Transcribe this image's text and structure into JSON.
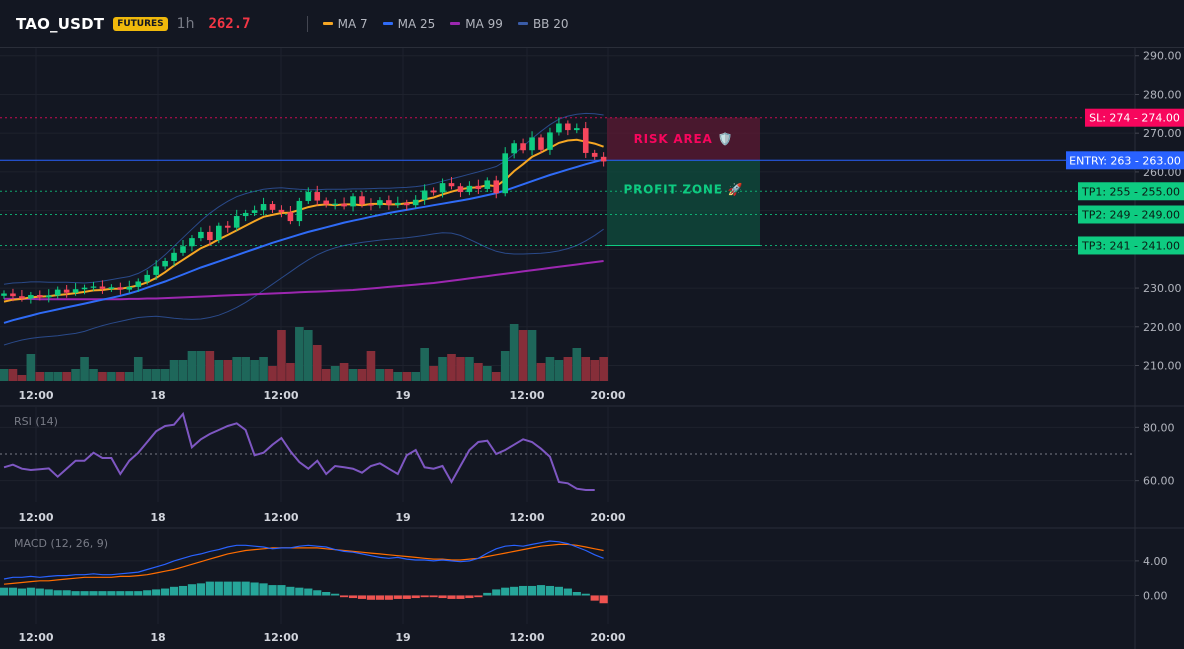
{
  "header": {
    "symbol": "TAO_USDT",
    "badge": "FUTURES",
    "interval": "1h",
    "price": "262.7",
    "legend": [
      {
        "label": "MA 7",
        "color": "#f5a623"
      },
      {
        "label": "MA 25",
        "color": "#2f6bf6"
      },
      {
        "label": "MA 99",
        "color": "#9c27b0"
      },
      {
        "label": "BB 20",
        "color": "#3a5ca8"
      }
    ]
  },
  "chart_data": [
    {
      "type": "candlestick",
      "panel": "price",
      "x_ticks": [
        "12:00",
        "18",
        "12:00",
        "19",
        "12:00",
        "20:00"
      ],
      "y_ticks": [
        "290.00",
        "280.00",
        "270.00",
        "260.00",
        "250.00",
        "240.00",
        "230.00",
        "220.00",
        "210.00"
      ],
      "ylim": [
        206,
        292
      ],
      "close": [
        228.6,
        227.9,
        227.3,
        228.2,
        227.6,
        228.1,
        229.6,
        228.8,
        229.7,
        230.1,
        230.4,
        229.8,
        230.2,
        229.6,
        230.3,
        231.7,
        233.4,
        235.6,
        237.0,
        239.1,
        240.8,
        242.9,
        244.5,
        242.4,
        246.1,
        245.6,
        248.6,
        249.4,
        250.1,
        251.7,
        250.2,
        249.6,
        247.3,
        252.5,
        254.8,
        252.6,
        251.6,
        251.8,
        251.1,
        253.7,
        251.6,
        251.4,
        252.7,
        251.5,
        252.0,
        251.4,
        252.8,
        255.2,
        254.7,
        257.1,
        256.3,
        254.8,
        256.4,
        255.6,
        257.8,
        254.5,
        264.8,
        267.4,
        265.6,
        268.9,
        265.7,
        270.2,
        272.5,
        270.8,
        271.3,
        264.9,
        263.9,
        262.7
      ],
      "volume": [
        4,
        4,
        2,
        9,
        3,
        3,
        3,
        3,
        4,
        8,
        4,
        3,
        3,
        3,
        3,
        8,
        4,
        4,
        4,
        7,
        7,
        10,
        10,
        10,
        7,
        7,
        8,
        8,
        7,
        8,
        5,
        17,
        6,
        18,
        17,
        12,
        4,
        5,
        6,
        4,
        4,
        10,
        4,
        4,
        3,
        3,
        3,
        11,
        5,
        8,
        9,
        8,
        8,
        6,
        5,
        3,
        10,
        19,
        17,
        17,
        6,
        8,
        7,
        8,
        11,
        8,
        7,
        8
      ],
      "ma7": [
        226.5,
        227.0,
        227.2,
        227.6,
        227.8,
        227.9,
        228.2,
        228.4,
        228.7,
        229.0,
        229.4,
        229.5,
        229.8,
        229.8,
        230.2,
        230.7,
        231.5,
        232.6,
        234.1,
        235.8,
        237.3,
        238.8,
        240.3,
        241.3,
        242.6,
        243.7,
        244.9,
        246.1,
        247.3,
        248.4,
        248.9,
        249.4,
        249.5,
        250.2,
        250.9,
        251.4,
        251.6,
        251.4,
        251.6,
        251.6,
        251.4,
        251.7,
        251.8,
        251.6,
        251.6,
        251.9,
        252.1,
        252.9,
        253.4,
        254.2,
        254.9,
        255.5,
        255.9,
        256.0,
        256.6,
        256.3,
        258.0,
        260.2,
        262.0,
        263.9,
        265.0,
        266.2,
        267.5,
        268.1,
        268.3,
        267.8,
        267.3,
        266.5
      ],
      "ma25": [
        221.0,
        221.7,
        222.3,
        222.9,
        223.5,
        224.0,
        224.5,
        225.0,
        225.5,
        226.0,
        226.5,
        227.0,
        227.5,
        228.0,
        228.6,
        229.3,
        230.1,
        230.9,
        231.7,
        232.6,
        233.5,
        234.4,
        235.3,
        236.1,
        236.9,
        237.7,
        238.5,
        239.3,
        240.1,
        240.9,
        241.7,
        242.4,
        243.1,
        243.8,
        244.5,
        245.1,
        245.7,
        246.3,
        246.9,
        247.4,
        247.9,
        248.4,
        248.9,
        249.4,
        249.8,
        250.2,
        250.6,
        251.0,
        251.4,
        251.8,
        252.2,
        252.6,
        253.0,
        253.5,
        254.0,
        254.5,
        255.2,
        256.0,
        256.8,
        257.6,
        258.4,
        259.2,
        259.9,
        260.6,
        261.3,
        262.0,
        262.6,
        263.2
      ],
      "ma99": [
        227.2,
        227.2,
        227.2,
        227.2,
        227.1,
        227.1,
        227.1,
        227.1,
        227.1,
        227.1,
        227.1,
        227.1,
        227.1,
        227.1,
        227.2,
        227.2,
        227.3,
        227.3,
        227.4,
        227.5,
        227.6,
        227.7,
        227.8,
        227.9,
        228.0,
        228.1,
        228.2,
        228.3,
        228.4,
        228.5,
        228.6,
        228.7,
        228.8,
        228.9,
        229.0,
        229.1,
        229.2,
        229.3,
        229.4,
        229.5,
        229.7,
        229.9,
        230.1,
        230.3,
        230.5,
        230.7,
        230.9,
        231.1,
        231.3,
        231.6,
        231.9,
        232.2,
        232.5,
        232.8,
        233.1,
        233.4,
        233.7,
        234.0,
        234.3,
        234.6,
        234.9,
        235.2,
        235.5,
        235.8,
        236.1,
        236.4,
        236.7,
        237.0
      ],
      "bb_upper": [
        231.0,
        231.3,
        231.4,
        231.6,
        231.6,
        231.5,
        231.5,
        231.5,
        231.4,
        231.3,
        231.5,
        231.8,
        232.2,
        232.6,
        233.0,
        233.8,
        235.0,
        236.6,
        238.6,
        240.8,
        243.0,
        245.2,
        247.4,
        249.3,
        251.0,
        252.4,
        253.6,
        254.4,
        255.0,
        255.5,
        255.8,
        255.9,
        255.7,
        255.5,
        255.4,
        255.4,
        255.5,
        255.5,
        255.5,
        255.6,
        255.6,
        255.7,
        255.8,
        255.8,
        255.9,
        256.0,
        256.2,
        256.5,
        257.0,
        257.6,
        258.2,
        258.8,
        259.4,
        260.0,
        260.7,
        261.4,
        262.8,
        264.6,
        266.6,
        268.6,
        270.5,
        272.2,
        273.6,
        274.4,
        274.9,
        275.1,
        275.0,
        274.7
      ],
      "bb_lower": [
        215.3,
        216.0,
        216.6,
        217.0,
        217.3,
        217.5,
        217.7,
        218.0,
        218.3,
        218.8,
        219.6,
        220.3,
        220.9,
        221.4,
        221.9,
        222.4,
        222.6,
        222.7,
        222.5,
        222.2,
        222.0,
        221.9,
        222.0,
        222.4,
        223.0,
        223.9,
        225.0,
        226.3,
        227.8,
        229.4,
        231.0,
        232.6,
        234.2,
        235.8,
        237.3,
        238.6,
        239.6,
        240.4,
        241.0,
        241.4,
        241.8,
        242.1,
        242.4,
        242.6,
        242.8,
        243.0,
        243.3,
        243.6,
        244.0,
        244.3,
        244.2,
        243.6,
        242.6,
        241.5,
        240.4,
        239.5,
        239.0,
        238.8,
        238.8,
        238.9,
        239.0,
        239.2,
        239.6,
        240.2,
        241.0,
        242.2,
        243.6,
        245.2
      ]
    },
    {
      "type": "line",
      "panel": "rsi",
      "title": "RSI (14)",
      "x_ticks": [
        "12:00",
        "18",
        "12:00",
        "19",
        "12:00",
        "20:00"
      ],
      "y_ticks": [
        "80.00",
        "60.00"
      ],
      "ylim": [
        52,
        88
      ],
      "reference_line": 70,
      "values": [
        65,
        66,
        64.5,
        64,
        64.3,
        64.6,
        61.5,
        64.5,
        67.5,
        67.5,
        70.5,
        68.5,
        68.5,
        62.5,
        67.5,
        70.5,
        74.5,
        78.5,
        80.5,
        81,
        85,
        72.5,
        75.5,
        77.5,
        79,
        80.5,
        81.5,
        79,
        69.5,
        70.5,
        73.5,
        76,
        71,
        67,
        64.5,
        67.5,
        62.5,
        65.5,
        65,
        64.5,
        63,
        65.5,
        66.5,
        64.5,
        62.5,
        69.5,
        71.5,
        65,
        64.5,
        65.5,
        59.5,
        65.5,
        71.5,
        74.5,
        75,
        70,
        71.5,
        73.5,
        75.5,
        74.5,
        72,
        69,
        59.5,
        59,
        57,
        56.5,
        56.5
      ]
    },
    {
      "type": "macd",
      "panel": "macd",
      "title": "MACD (12, 26, 9)",
      "x_ticks": [
        "12:00",
        "18",
        "12:00",
        "19",
        "12:00",
        "20:00"
      ],
      "y_ticks": [
        "4.00",
        "0.00"
      ],
      "ylim": [
        -3.3,
        7.8
      ],
      "macd": [
        1.9,
        2.1,
        2.1,
        2.2,
        2.1,
        2.2,
        2.3,
        2.3,
        2.4,
        2.4,
        2.5,
        2.4,
        2.4,
        2.5,
        2.6,
        2.7,
        3.0,
        3.3,
        3.6,
        4.0,
        4.3,
        4.6,
        4.8,
        5.1,
        5.3,
        5.6,
        5.8,
        5.8,
        5.7,
        5.6,
        5.4,
        5.5,
        5.5,
        5.7,
        5.8,
        5.7,
        5.6,
        5.3,
        5.1,
        5.0,
        4.8,
        4.6,
        4.4,
        4.3,
        4.4,
        4.2,
        4.1,
        4.1,
        4.0,
        4.1,
        4.0,
        3.9,
        4.0,
        4.3,
        4.9,
        5.4,
        5.7,
        5.8,
        5.7,
        5.9,
        6.1,
        6.3,
        6.2,
        6.0,
        5.6,
        5.2,
        4.7,
        4.3
      ],
      "signal": [
        1.3,
        1.4,
        1.5,
        1.6,
        1.7,
        1.7,
        1.8,
        1.9,
        2.0,
        2.1,
        2.1,
        2.1,
        2.1,
        2.2,
        2.2,
        2.3,
        2.4,
        2.6,
        2.8,
        3.0,
        3.3,
        3.6,
        3.9,
        4.2,
        4.5,
        4.8,
        5.0,
        5.2,
        5.3,
        5.4,
        5.5,
        5.5,
        5.5,
        5.5,
        5.5,
        5.5,
        5.4,
        5.3,
        5.2,
        5.1,
        5.0,
        4.9,
        4.8,
        4.7,
        4.6,
        4.5,
        4.4,
        4.3,
        4.2,
        4.2,
        4.1,
        4.1,
        4.2,
        4.3,
        4.5,
        4.7,
        4.9,
        5.1,
        5.3,
        5.5,
        5.7,
        5.8,
        5.9,
        5.9,
        5.8,
        5.6,
        5.4,
        5.2
      ],
      "histogram": [
        0.9,
        0.9,
        0.8,
        0.9,
        0.8,
        0.7,
        0.6,
        0.6,
        0.5,
        0.5,
        0.5,
        0.5,
        0.5,
        0.5,
        0.5,
        0.5,
        0.6,
        0.7,
        0.8,
        1.0,
        1.1,
        1.3,
        1.4,
        1.6,
        1.6,
        1.6,
        1.6,
        1.6,
        1.5,
        1.4,
        1.2,
        1.2,
        1.0,
        0.9,
        0.8,
        0.6,
        0.4,
        0.2,
        -0.2,
        -0.3,
        -0.4,
        -0.5,
        -0.5,
        -0.5,
        -0.4,
        -0.4,
        -0.3,
        -0.2,
        -0.2,
        -0.3,
        -0.4,
        -0.4,
        -0.3,
        -0.2,
        0.3,
        0.7,
        0.9,
        1.0,
        1.1,
        1.1,
        1.2,
        1.1,
        1.0,
        0.8,
        0.4,
        0.2,
        -0.6,
        -0.9
      ]
    }
  ],
  "trade_levels": {
    "sl": {
      "label": "SL: 274 - 274.00",
      "value": 274,
      "color": "#f7065d"
    },
    "entry": {
      "label": "ENTRY: 263 - 263.00",
      "value": 263,
      "color": "#2962ff"
    },
    "tp": [
      {
        "label": "TP1: 255 - 255.00",
        "value": 255,
        "color": "#0ecb81"
      },
      {
        "label": "TP2: 249 - 249.00",
        "value": 249,
        "color": "#0ecb81"
      },
      {
        "label": "TP3: 241 - 241.00",
        "value": 241,
        "color": "#0ecb81"
      }
    ]
  },
  "zones": {
    "risk": {
      "label": "RISK AREA 🛡️",
      "top": 274,
      "bottom": 263
    },
    "profit": {
      "label": "PROFIT ZONE 🚀",
      "top": 263,
      "bottom": 241
    }
  },
  "colors": {
    "up": "#26a69a",
    "down": "#ef5350",
    "candle_up": "#0ecb81",
    "candle_down": "#f6465d",
    "rsi": "#7e57c2",
    "macd": "#2962ff",
    "signal": "#ff6d00"
  }
}
